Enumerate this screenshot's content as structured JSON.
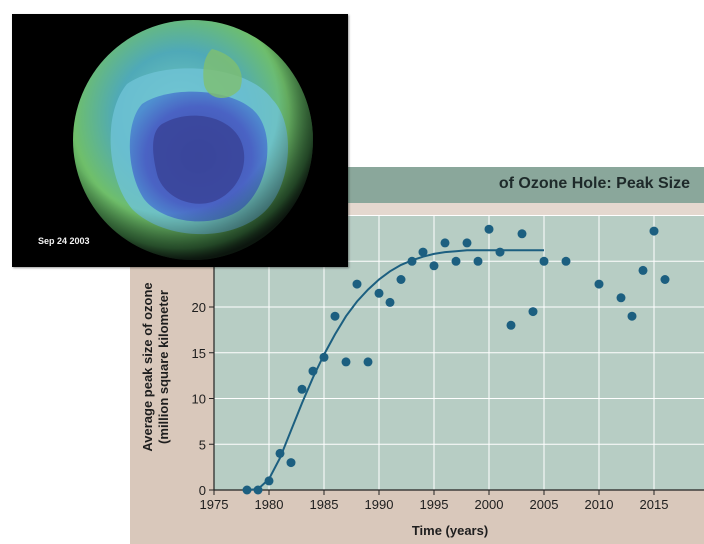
{
  "photo": {
    "date_label": "Sep 24 2003"
  },
  "chart_data": {
    "type": "scatter",
    "title": "of Ozone Hole: Peak Size",
    "xlabel": "Time (years)",
    "ylabel_lines": [
      "Average peak size of ozone",
      "(million square kilometer"
    ],
    "xlim": [
      1975,
      2020
    ],
    "ylim": [
      0,
      30
    ],
    "x_ticks": [
      1975,
      1980,
      1985,
      1990,
      1995,
      2000,
      2005,
      2010,
      2015
    ],
    "y_ticks": [
      0,
      5,
      10,
      15,
      20
    ],
    "grid": true,
    "colors": {
      "points": "#1c5f80",
      "curve": "#1c5f80",
      "plot_bg": "#b7cdc4",
      "panel_bg": "#d9c8bb",
      "title_bg": "#8aa79b",
      "grid": "#ffffff"
    },
    "points": [
      [
        1978,
        0
      ],
      [
        1979,
        0
      ],
      [
        1980,
        1
      ],
      [
        1981,
        4
      ],
      [
        1982,
        3
      ],
      [
        1983,
        11
      ],
      [
        1984,
        13
      ],
      [
        1985,
        14.5
      ],
      [
        1986,
        19
      ],
      [
        1987,
        14
      ],
      [
        1988,
        22.5
      ],
      [
        1989,
        14
      ],
      [
        1990,
        21.5
      ],
      [
        1991,
        20.5
      ],
      [
        1992,
        23
      ],
      [
        1993,
        25
      ],
      [
        1994,
        26
      ],
      [
        1995,
        24.5
      ],
      [
        1996,
        27
      ],
      [
        1997,
        25
      ],
      [
        1998,
        27
      ],
      [
        1999,
        25
      ],
      [
        2000,
        28.5
      ],
      [
        2001,
        26
      ],
      [
        2002,
        18
      ],
      [
        2003,
        28
      ],
      [
        2004,
        19.5
      ],
      [
        2005,
        25
      ],
      [
        2007,
        25
      ],
      [
        2010,
        22.5
      ],
      [
        2012,
        21
      ],
      [
        2013,
        19
      ],
      [
        2014,
        24
      ],
      [
        2015,
        28.3
      ],
      [
        2016,
        23
      ]
    ],
    "trend_curve": [
      [
        1978,
        0
      ],
      [
        1979,
        0.1
      ],
      [
        1980,
        1.2
      ],
      [
        1981,
        3.5
      ],
      [
        1982,
        6.5
      ],
      [
        1983,
        9.5
      ],
      [
        1984,
        12.3
      ],
      [
        1985,
        14.8
      ],
      [
        1986,
        17
      ],
      [
        1987,
        19
      ],
      [
        1988,
        20.6
      ],
      [
        1989,
        21.9
      ],
      [
        1990,
        23
      ],
      [
        1991,
        23.9
      ],
      [
        1992,
        24.6
      ],
      [
        1993,
        25.1
      ],
      [
        1994,
        25.5
      ],
      [
        1995,
        25.8
      ],
      [
        1996,
        26
      ],
      [
        1997,
        26.1
      ],
      [
        1998,
        26.2
      ],
      [
        1999,
        26.2
      ],
      [
        2000,
        26.2
      ],
      [
        2001,
        26.2
      ],
      [
        2002,
        26.2
      ],
      [
        2003,
        26.2
      ],
      [
        2004,
        26.2
      ],
      [
        2005,
        26.2
      ]
    ]
  }
}
